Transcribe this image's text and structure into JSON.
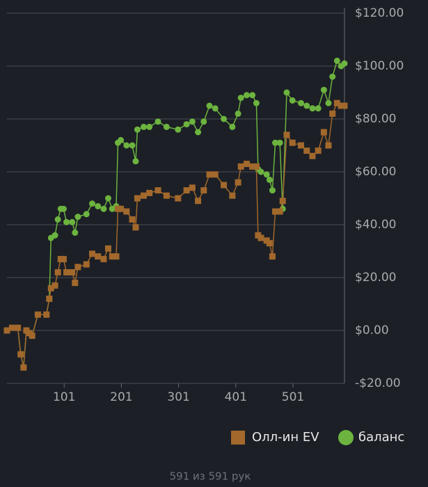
{
  "chart_data": {
    "type": "line",
    "x": [
      1,
      10,
      20,
      25,
      30,
      35,
      40,
      45,
      55,
      70,
      75,
      78,
      85,
      90,
      95,
      100,
      105,
      115,
      120,
      125,
      140,
      150,
      160,
      170,
      178,
      185,
      192,
      195,
      200,
      210,
      220,
      226,
      229,
      240,
      250,
      265,
      280,
      300,
      315,
      325,
      335,
      345,
      355,
      365,
      380,
      395,
      405,
      410,
      420,
      430,
      437,
      440,
      445,
      455,
      460,
      465,
      470,
      478,
      483,
      490,
      500,
      515,
      525,
      535,
      545,
      555,
      563,
      570,
      578,
      585,
      591
    ],
    "series": [
      {
        "name": "баланс",
        "color": "#6cb33f",
        "marker": "circle",
        "values": [
          0,
          1,
          1,
          -9,
          -14,
          0,
          -1,
          -2,
          6,
          6,
          12,
          35,
          36,
          42,
          46,
          46,
          41,
          41,
          37,
          43,
          44,
          48,
          47,
          46,
          50,
          46,
          47,
          71,
          72,
          70,
          70,
          64,
          76,
          77,
          77,
          79,
          77,
          76,
          78,
          79,
          75,
          79,
          85,
          84,
          80,
          77,
          82,
          88,
          89,
          89,
          86,
          61,
          60,
          59,
          57,
          53,
          71,
          71,
          46,
          90,
          87,
          86,
          85,
          84,
          84,
          91,
          86,
          96,
          102,
          100,
          101
        ]
      },
      {
        "name": "Олл-ин EV",
        "color": "#a2682c",
        "marker": "square",
        "values": [
          0,
          1,
          1,
          -9,
          -14,
          0,
          -1,
          -2,
          6,
          6,
          12,
          16,
          17,
          22,
          27,
          27,
          22,
          22,
          18,
          24,
          25,
          29,
          28,
          27,
          31,
          28,
          28,
          46,
          46,
          45,
          42,
          39,
          50,
          51,
          52,
          53,
          51,
          50,
          53,
          54,
          49,
          53,
          59,
          59,
          55,
          51,
          56,
          62,
          63,
          62,
          62,
          36,
          35,
          34,
          33,
          28,
          45,
          45,
          49,
          74,
          71,
          70,
          68,
          66,
          68,
          75,
          70,
          82,
          86,
          85,
          85
        ]
      }
    ],
    "xlim": [
      1,
      591
    ],
    "xticks": [
      101,
      201,
      301,
      401,
      501
    ],
    "ylim": [
      -20,
      120
    ],
    "yticks": [
      {
        "value": -20,
        "label": "-$20.00"
      },
      {
        "value": 0,
        "label": "$0.00"
      },
      {
        "value": 20,
        "label": "$20.00"
      },
      {
        "value": 40,
        "label": "$40.00"
      },
      {
        "value": 60,
        "label": "$60.00"
      },
      {
        "value": 80,
        "label": "$80.00"
      },
      {
        "value": 100,
        "label": "$100.00"
      },
      {
        "value": 120,
        "label": "$120.00"
      }
    ],
    "grid": true,
    "legend": "bottom-right"
  },
  "footer": "591 из 591 рук"
}
